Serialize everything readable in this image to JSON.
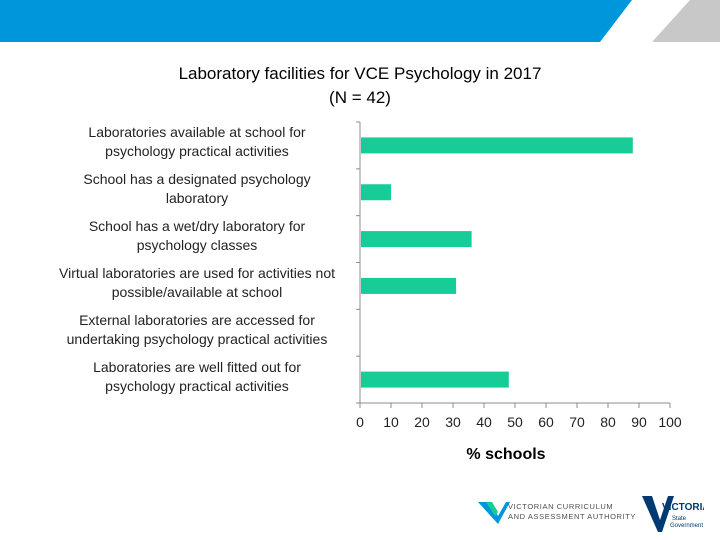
{
  "chart_data": {
    "type": "bar",
    "orientation": "horizontal",
    "title": "Laboratory facilities for VCE Psychology in 2017",
    "subtitle": "(N = 42)",
    "xlabel": "% schools",
    "xlim": [
      0,
      100
    ],
    "xticks": [
      "0",
      "10",
      "20",
      "30",
      "40",
      "50",
      "60",
      "70",
      "80",
      "90",
      "100"
    ],
    "categories": [
      [
        "Laboratories available at  school for",
        "psychology practical activities"
      ],
      [
        "School has a designated psychology",
        "laboratory"
      ],
      [
        "School has a wet/dry laboratory for",
        "psychology classes"
      ],
      [
        "Virtual laboratories are used for activities not",
        "possible/available at school"
      ],
      [
        "External laboratories are accessed for",
        "undertaking psychology practical activities"
      ],
      [
        "Laboratories are well fitted out for",
        "psychology practical activities"
      ]
    ],
    "values": [
      88,
      10,
      36,
      31,
      0,
      48
    ],
    "bar_color": "#17cc96",
    "grid": false
  },
  "branding": {
    "vcaa_line1": "VICTORIAN CURRICULUM",
    "vcaa_line2": "AND ASSESSMENT AUTHORITY",
    "vic_name": "VICTORIA",
    "vic_sub1": "State",
    "vic_sub2": "Government"
  },
  "colors": {
    "banner": "#0096db",
    "accent": "#17cc96"
  }
}
